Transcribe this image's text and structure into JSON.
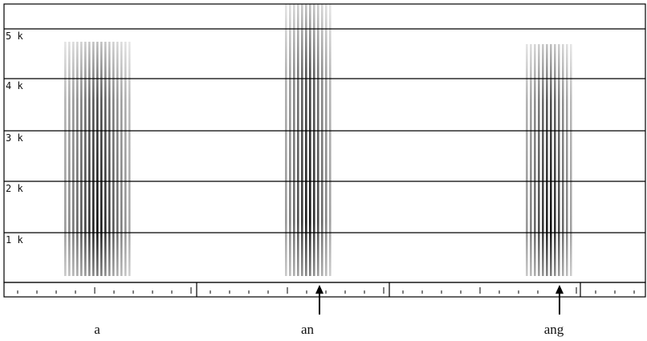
{
  "axis_labels": [
    "5 k",
    "4 k",
    "3 k",
    "2 k",
    "1 k"
  ],
  "sounds": [
    "a",
    "an",
    "ang"
  ]
}
